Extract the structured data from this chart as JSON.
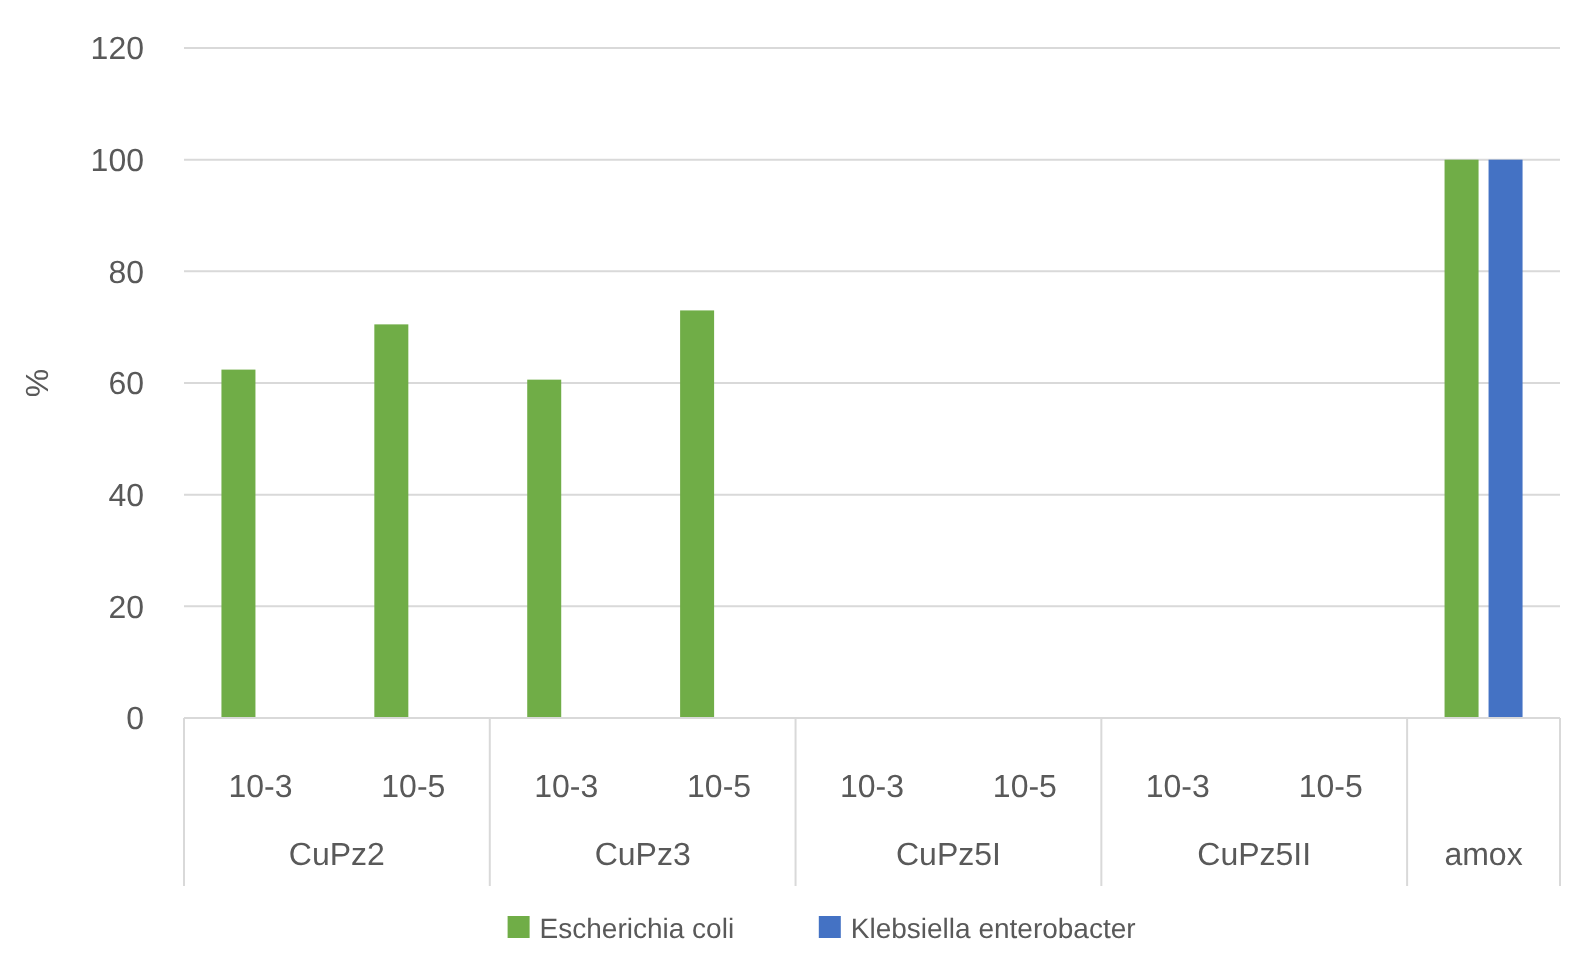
{
  "chart_data": {
    "type": "bar",
    "ylabel": "%",
    "categories": [
      "10-3",
      "10-5",
      "10-3",
      "10-5",
      "10-3",
      "10-5",
      "10-3",
      "10-5",
      null
    ],
    "series": [
      {
        "name": "Escherichia coli",
        "color": "#70ad47",
        "values": [
          62.4,
          70.5,
          60.6,
          73,
          null,
          null,
          null,
          null,
          100
        ]
      },
      {
        "name": "Klebsiella enterobacter",
        "color": "#4472c4",
        "values": [
          null,
          null,
          null,
          null,
          null,
          null,
          null,
          null,
          100
        ]
      }
    ],
    "annotations": [
      "CuPz2",
      "CuPz3",
      "CuPz5I",
      "CuPz5II",
      "amox"
    ],
    "ylim": [
      0,
      120
    ],
    "yticks": [
      0,
      20,
      40,
      60,
      80,
      100,
      120
    ],
    "grid": "y",
    "legend": "bottom"
  }
}
